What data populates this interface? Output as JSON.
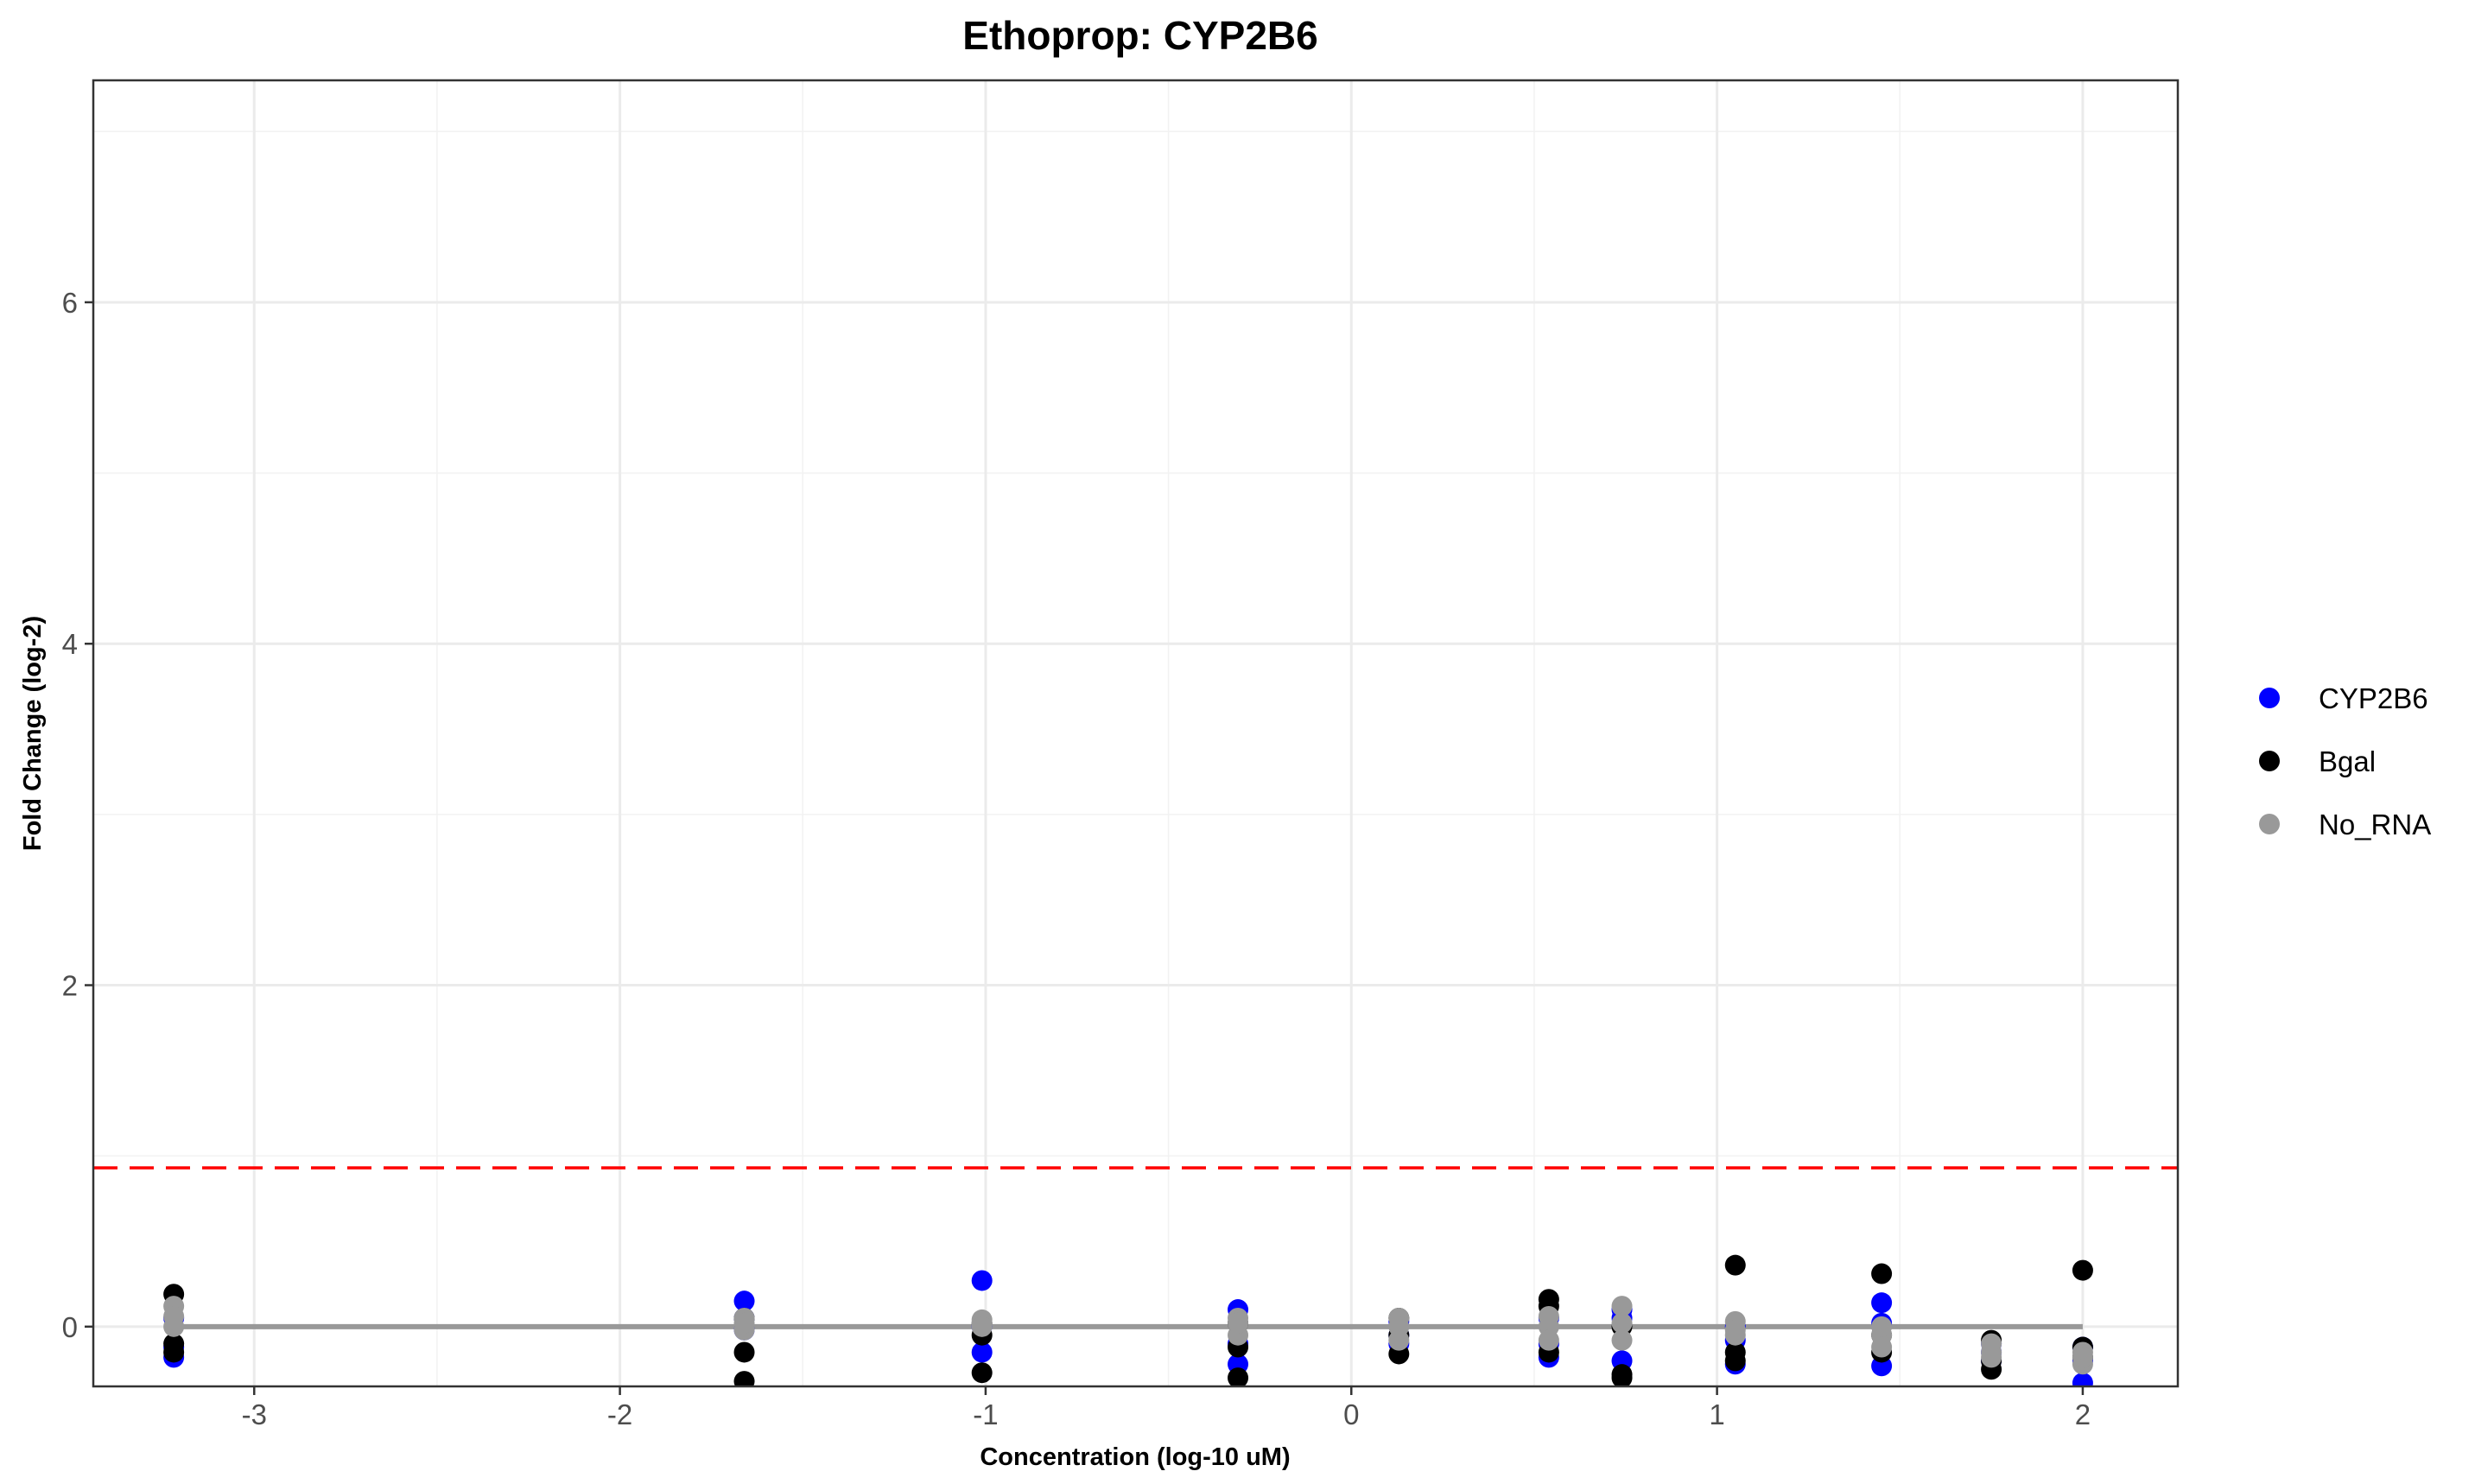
{
  "chart_data": {
    "type": "scatter",
    "title": "Ethoprop: CYP2B6",
    "xlabel": "Concentration (log-10 uM)",
    "ylabel": "Fold Change (log-2)",
    "xlim": [
      -3.44,
      2.26
    ],
    "ylim": [
      -0.35,
      7.3
    ],
    "x_ticks": [
      -3,
      -2,
      -1,
      0,
      1,
      2
    ],
    "x_tick_labels": [
      "-3",
      "-2",
      "-1",
      "0",
      "1",
      "2"
    ],
    "y_ticks": [
      0,
      2,
      4,
      6
    ],
    "y_tick_labels": [
      "0",
      "2",
      "4",
      "6"
    ],
    "grid": true,
    "legend_position": "right",
    "series": [
      {
        "name": "CYP2B6",
        "color": "#0000ff",
        "points": [
          [
            -3.22,
            -0.18
          ],
          [
            -3.22,
            -0.12
          ],
          [
            -3.22,
            0.05
          ],
          [
            -1.66,
            0.15
          ],
          [
            -1.66,
            0.05
          ],
          [
            -1.66,
            -0.02
          ],
          [
            -1.01,
            0.27
          ],
          [
            -1.01,
            -0.15
          ],
          [
            -1.01,
            0.0
          ],
          [
            -0.31,
            0.1
          ],
          [
            -0.31,
            -0.22
          ],
          [
            -0.31,
            -0.1
          ],
          [
            0.13,
            0.03
          ],
          [
            0.13,
            -0.05
          ],
          [
            0.13,
            -0.1
          ],
          [
            0.54,
            -0.18
          ],
          [
            0.54,
            0.05
          ],
          [
            0.54,
            -0.1
          ],
          [
            0.74,
            0.05
          ],
          [
            0.74,
            -0.2
          ],
          [
            0.74,
            0.1
          ],
          [
            1.05,
            -0.22
          ],
          [
            1.05,
            -0.08
          ],
          [
            1.05,
            0.0
          ],
          [
            1.45,
            0.14
          ],
          [
            1.45,
            -0.23
          ],
          [
            1.45,
            0.02
          ],
          [
            1.75,
            -0.15
          ],
          [
            1.75,
            -0.1
          ],
          [
            1.75,
            -0.2
          ],
          [
            2.0,
            -0.33
          ],
          [
            2.0,
            -0.2
          ],
          [
            2.0,
            -0.12
          ]
        ]
      },
      {
        "name": "Bgal",
        "color": "#000000",
        "points": [
          [
            -3.22,
            0.19
          ],
          [
            -3.22,
            -0.1
          ],
          [
            -3.22,
            -0.15
          ],
          [
            -1.66,
            -0.15
          ],
          [
            -1.66,
            -0.32
          ],
          [
            -1.66,
            0.05
          ],
          [
            -1.01,
            -0.27
          ],
          [
            -1.01,
            -0.05
          ],
          [
            -1.01,
            0.02
          ],
          [
            -0.31,
            -0.3
          ],
          [
            -0.31,
            -0.12
          ],
          [
            -0.31,
            0.02
          ],
          [
            0.13,
            -0.16
          ],
          [
            0.13,
            0.05
          ],
          [
            0.13,
            -0.05
          ],
          [
            0.54,
            0.16
          ],
          [
            0.54,
            0.12
          ],
          [
            0.54,
            -0.15
          ],
          [
            0.74,
            -0.28
          ],
          [
            0.74,
            -0.3
          ],
          [
            0.74,
            0.0
          ],
          [
            1.05,
            0.36
          ],
          [
            1.05,
            -0.2
          ],
          [
            1.05,
            -0.15
          ],
          [
            1.45,
            0.31
          ],
          [
            1.45,
            -0.15
          ],
          [
            1.45,
            -0.05
          ],
          [
            1.75,
            -0.25
          ],
          [
            1.75,
            -0.08
          ],
          [
            1.75,
            -0.2
          ],
          [
            2.0,
            0.33
          ],
          [
            2.0,
            -0.12
          ],
          [
            2.0,
            -0.18
          ]
        ]
      },
      {
        "name": "No_RNA",
        "color": "#999999",
        "points": [
          [
            -3.22,
            0.12
          ],
          [
            -3.22,
            0.0
          ],
          [
            -3.22,
            0.06
          ],
          [
            -1.66,
            0.05
          ],
          [
            -1.66,
            -0.02
          ],
          [
            -1.66,
            0.02
          ],
          [
            -1.01,
            0.02
          ],
          [
            -1.01,
            0.04
          ],
          [
            -1.01,
            0.0
          ],
          [
            -0.31,
            0.05
          ],
          [
            -0.31,
            -0.05
          ],
          [
            -0.31,
            0.02
          ],
          [
            0.13,
            0.05
          ],
          [
            0.13,
            -0.08
          ],
          [
            0.13,
            0.0
          ],
          [
            0.54,
            0.0
          ],
          [
            0.54,
            -0.08
          ],
          [
            0.54,
            0.06
          ],
          [
            0.74,
            0.12
          ],
          [
            0.74,
            -0.08
          ],
          [
            0.74,
            0.02
          ],
          [
            1.05,
            0.03
          ],
          [
            1.05,
            -0.05
          ],
          [
            1.05,
            -0.02
          ],
          [
            1.45,
            -0.05
          ],
          [
            1.45,
            -0.12
          ],
          [
            1.45,
            0.0
          ],
          [
            1.75,
            -0.15
          ],
          [
            1.75,
            -0.18
          ],
          [
            1.75,
            -0.1
          ],
          [
            2.0,
            -0.15
          ],
          [
            2.0,
            -0.22
          ],
          [
            2.0,
            -0.18
          ]
        ]
      }
    ],
    "fit_line": {
      "color": "#999999",
      "x": [
        -3.22,
        2.0
      ],
      "y": [
        0,
        0
      ]
    },
    "threshold_line": {
      "color": "#ff0000",
      "style": "dashed",
      "y": 0.93
    }
  }
}
